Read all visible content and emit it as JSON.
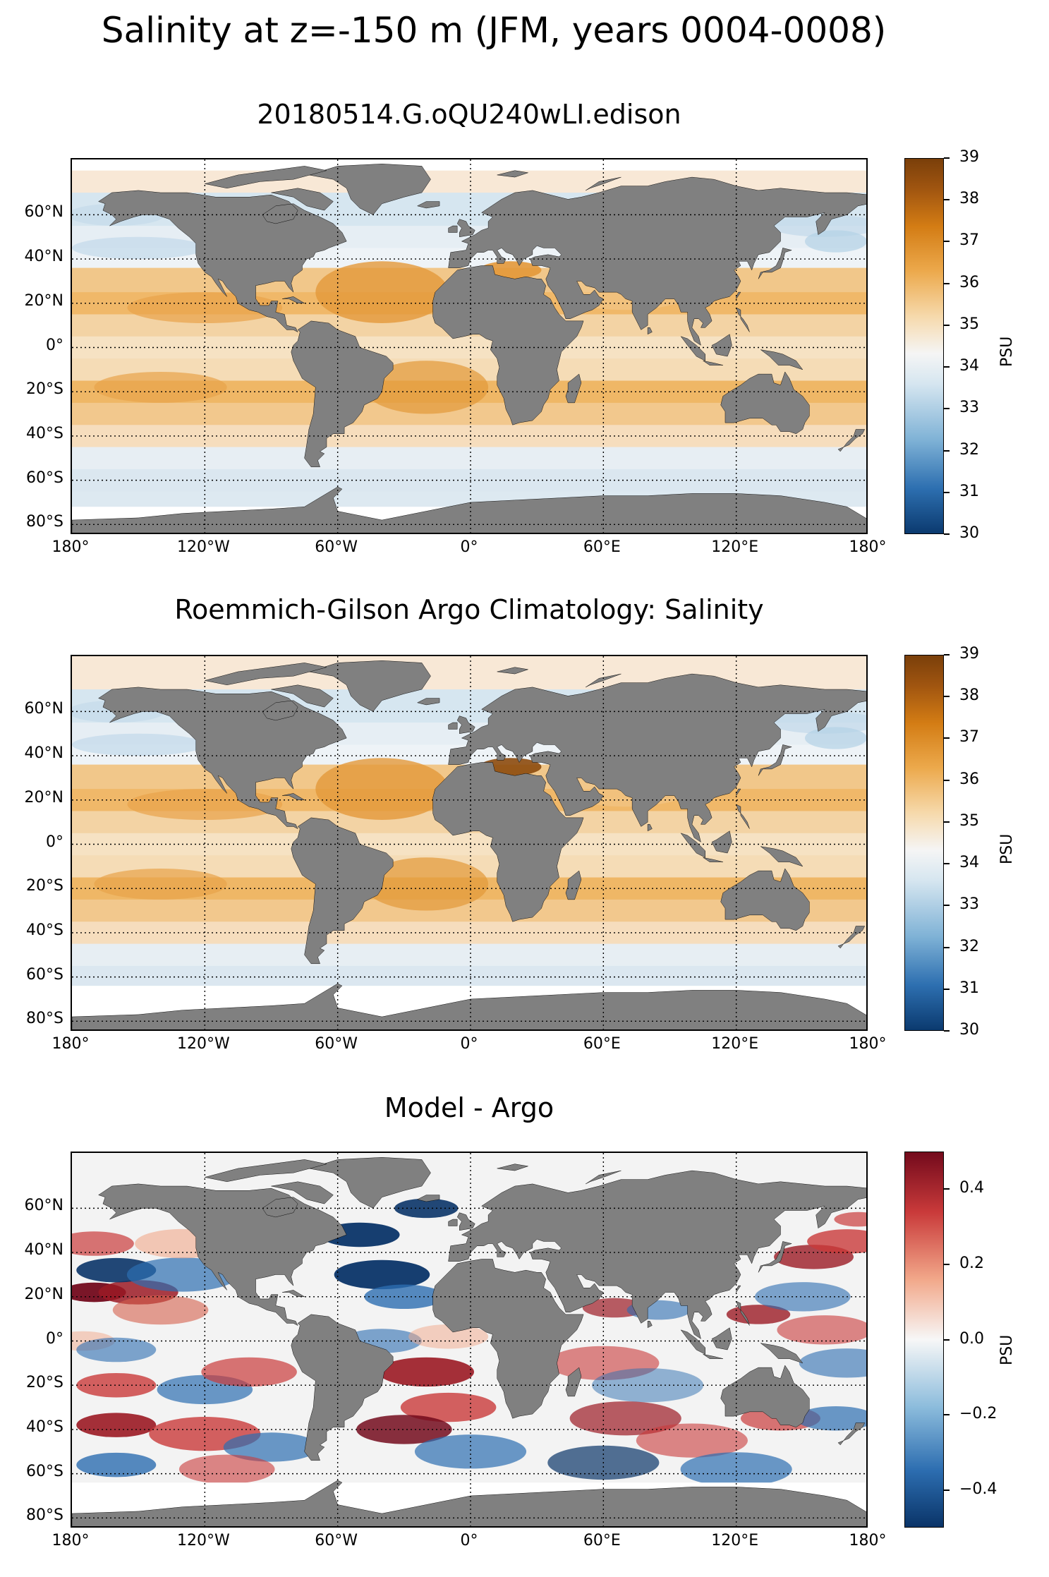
{
  "suptitle": "Salinity at z=-150 m (JFM, years 0004-0008)",
  "colors": {
    "land": "#808080",
    "coast": "#000000",
    "grid": "#000000",
    "salt_low": "#0b3a6f",
    "salt_mid": "#f5f5f5",
    "salt_high": "#8c4a0c",
    "diff_low": "#0a3468",
    "diff_mid": "#f7f7f7",
    "diff_high": "#730a1c"
  },
  "lon_labels": [
    "180°",
    "120°W",
    "60°W",
    "0°",
    "60°E",
    "120°E",
    "180°"
  ],
  "lat_labels": [
    "60°N",
    "40°N",
    "20°N",
    "0°",
    "20°S",
    "40°S",
    "60°S",
    "80°S"
  ],
  "panels": [
    {
      "title": "20180514.G.oQU240wLI.edison",
      "colormap": "brown-blue",
      "colorbar": {
        "ticks": [
          "39",
          "38",
          "37",
          "36",
          "35",
          "34",
          "33",
          "32",
          "31",
          "30"
        ],
        "label": "PSU",
        "range": [
          30,
          39
        ]
      },
      "field": "model salinity"
    },
    {
      "title": "Roemmich-Gilson Argo Climatology: Salinity",
      "colormap": "brown-blue",
      "colorbar": {
        "ticks": [
          "39",
          "38",
          "37",
          "36",
          "35",
          "34",
          "33",
          "32",
          "31",
          "30"
        ],
        "label": "PSU",
        "range": [
          30,
          39
        ]
      },
      "field": "observed salinity"
    },
    {
      "title": "Model - Argo",
      "colormap": "red-blue",
      "colorbar": {
        "ticks": [
          "0.4",
          "0.2",
          "0.0",
          "−0.2",
          "−0.4"
        ],
        "label": "PSU",
        "range": [
          -0.5,
          0.5
        ]
      },
      "field": "difference"
    }
  ]
}
